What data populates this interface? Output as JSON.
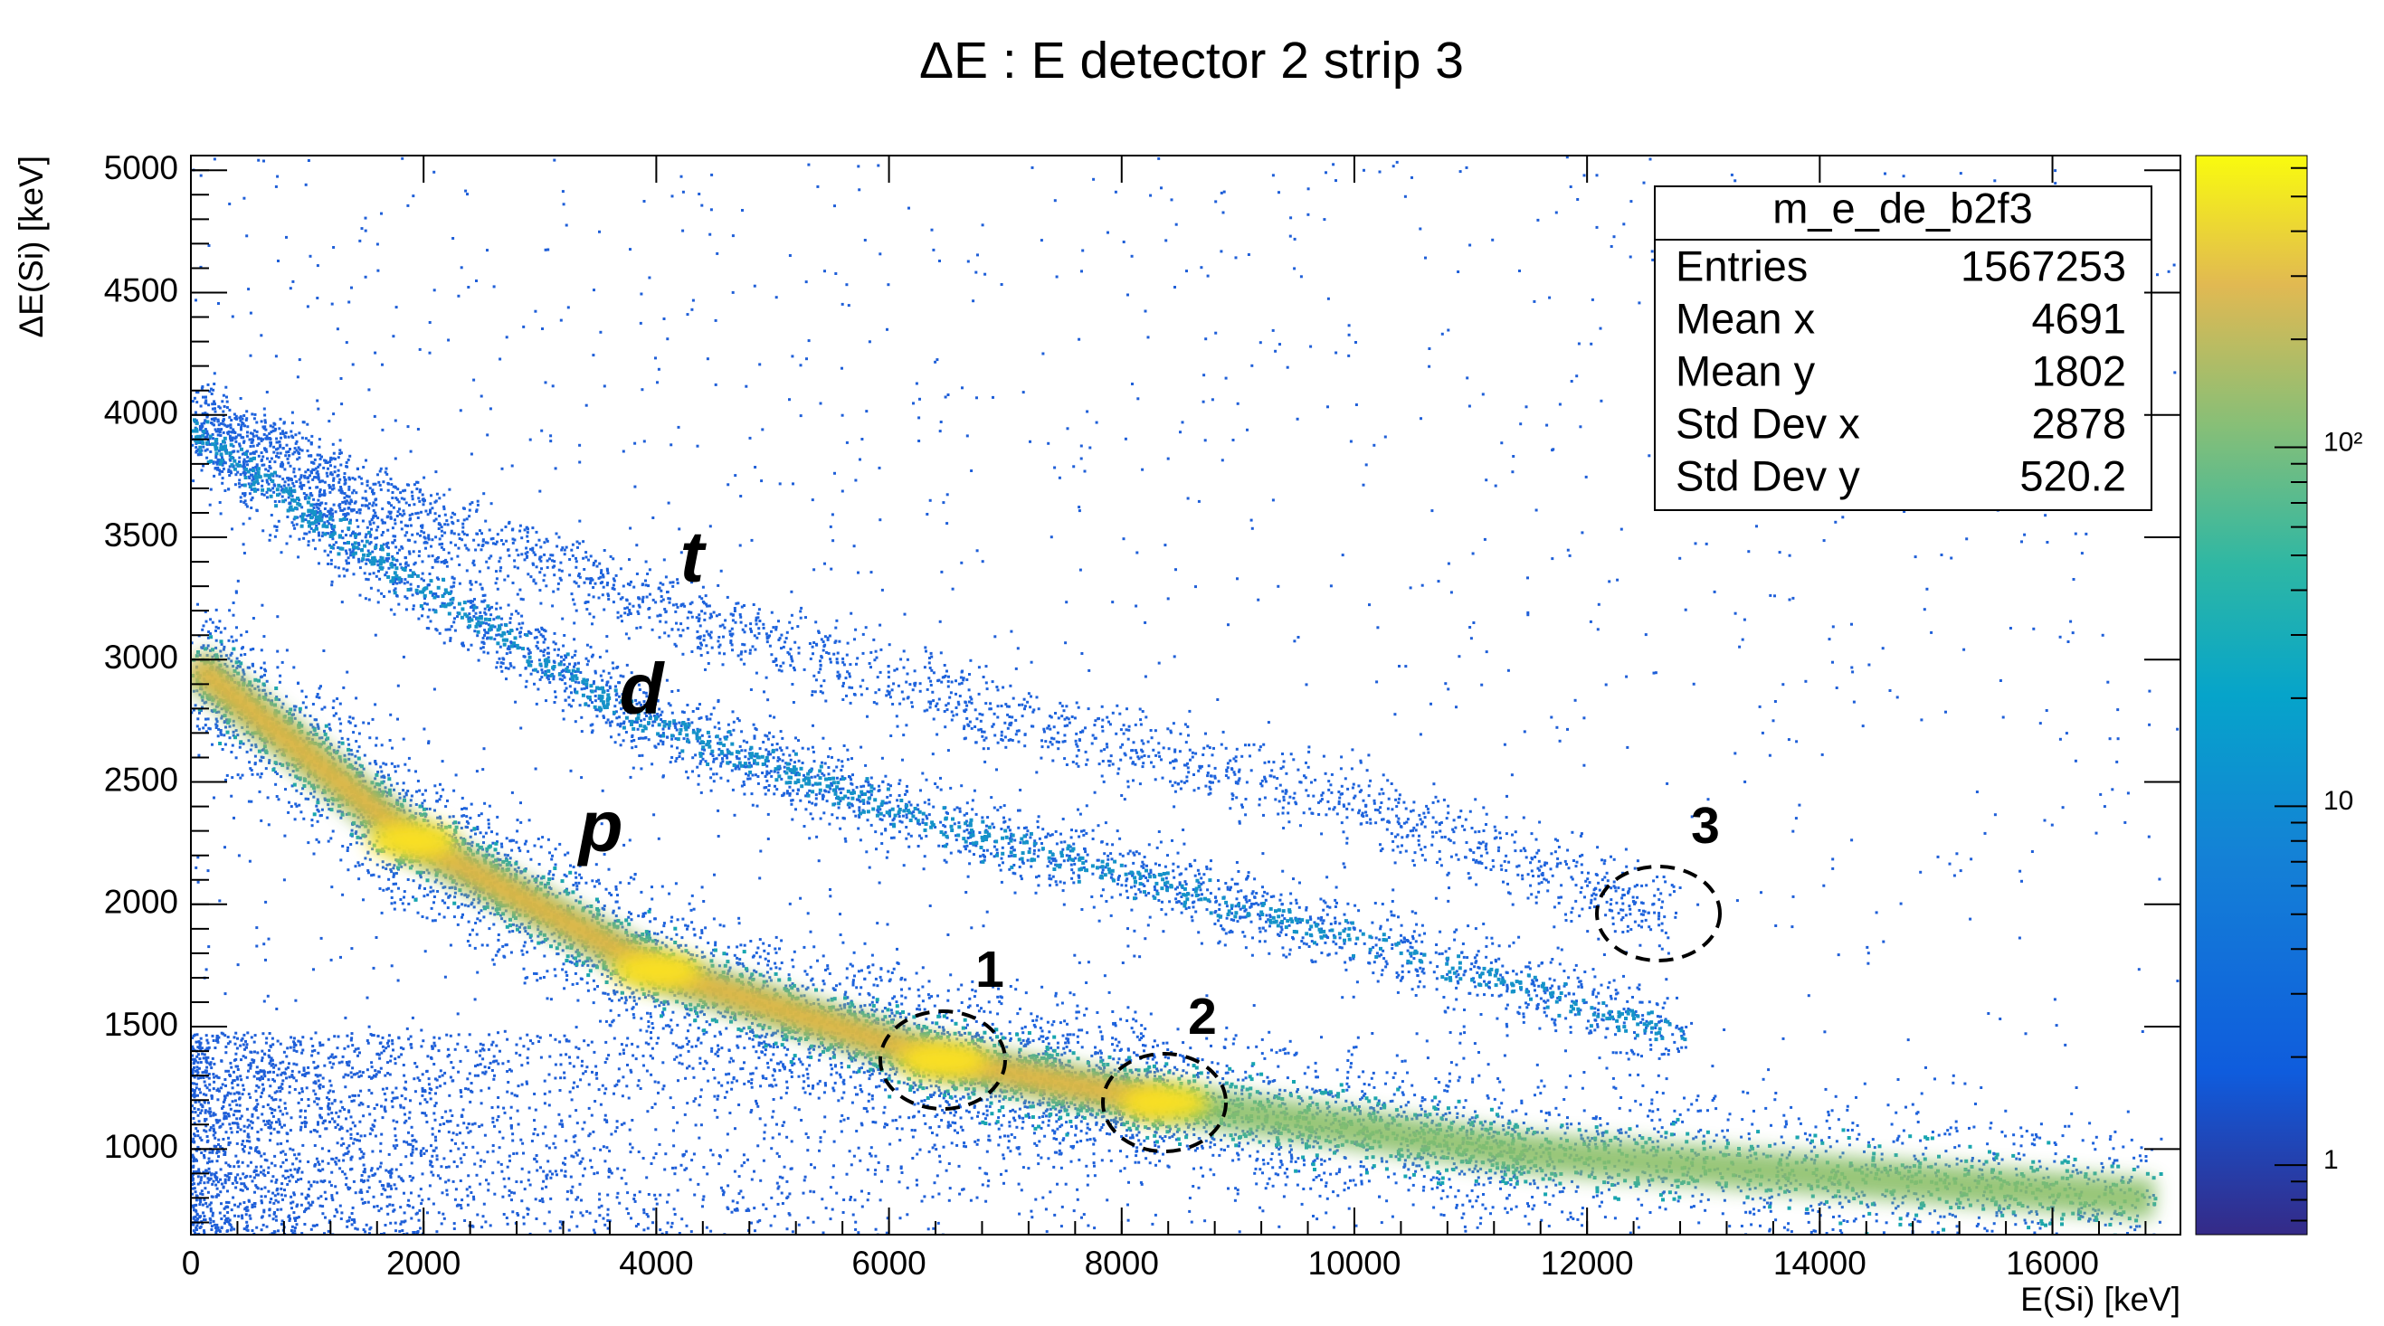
{
  "chart_data": {
    "type": "histogram2d",
    "title": "ΔE : E detector 2 strip 3",
    "x_label": "E(Si) [keV]",
    "y_label": "ΔE(Si) [keV]",
    "xlim": [
      0,
      17100
    ],
    "ylim": [
      650,
      5060
    ],
    "xticks": [
      0,
      2000,
      4000,
      6000,
      8000,
      10000,
      12000,
      14000,
      16000
    ],
    "yticks": [
      1000,
      1500,
      2000,
      2500,
      3000,
      3500,
      4000,
      4500,
      5000
    ],
    "zlim": [
      0.64,
      650
    ],
    "zlog": true,
    "zticks": [
      1,
      10,
      {
        "value": 100,
        "label": "10²"
      }
    ],
    "stats_box": {
      "title": "m_e_de_b2f3",
      "entries": [
        {
          "label": "Entries",
          "value": 1567253
        },
        {
          "label": "Mean x",
          "value": 4691
        },
        {
          "label": "Mean y",
          "value": 1802
        },
        {
          "label": "Std Dev x",
          "value": 2878
        },
        {
          "label": "Std Dev y",
          "value": 520.2
        }
      ]
    },
    "annotations": [
      "t",
      "d",
      "p",
      "1",
      "2",
      "3"
    ]
  }
}
